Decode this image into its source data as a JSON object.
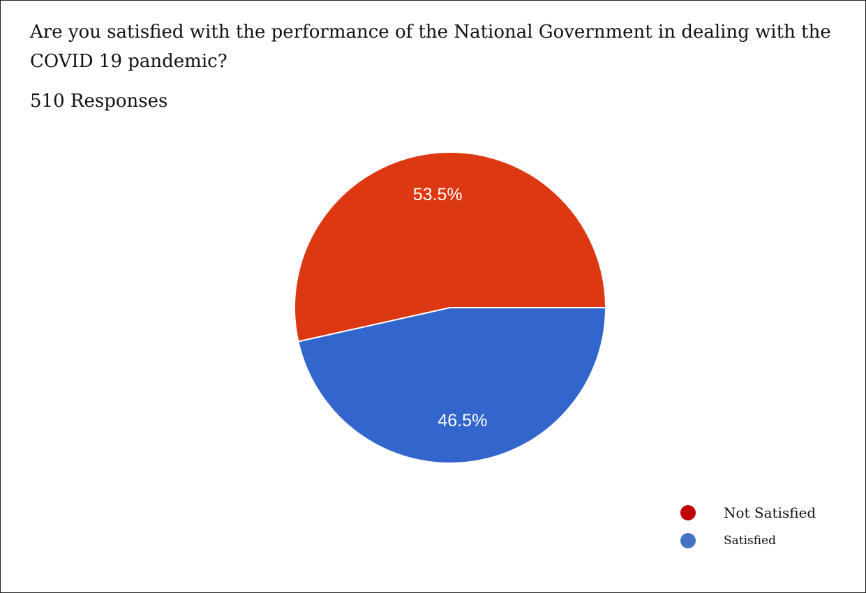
{
  "question": "Are you satisfied with the performance of the National Government in dealing with the COVID 19 pandemic?",
  "responses_text": "510 Responses",
  "colors": {
    "not_satisfied": "#DC3912",
    "satisfied": "#3366CC",
    "legend_not_satisfied": "#C00000",
    "legend_satisfied": "#4472C4"
  },
  "chart_data": {
    "type": "pie",
    "title": "Are you satisfied with the performance of the National Government in dealing with the COVID 19 pandemic?",
    "subtitle": "510 Responses",
    "slices": [
      {
        "label": "Not Satisfied",
        "value": 53.5,
        "display": "53.5%",
        "color": "#DC3912"
      },
      {
        "label": "Satisfied",
        "value": 46.5,
        "display": "46.5%",
        "color": "#3366CC"
      }
    ],
    "legend_position": "bottom-right"
  },
  "legend": [
    {
      "label": "Not Satisfied",
      "color": "#C00000"
    },
    {
      "label": "Satisfied",
      "color": "#4472C4"
    }
  ]
}
